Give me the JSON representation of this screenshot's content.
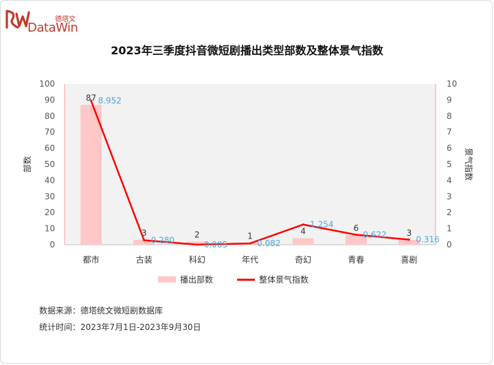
{
  "brand": {
    "cn": "德塔文",
    "en": "DataWin"
  },
  "chart_data": {
    "type": "bar+line",
    "title": "2023年三季度抖音微短剧播出类型部数及整体景气指数",
    "categories": [
      "都市",
      "古装",
      "科幻",
      "年代",
      "奇幻",
      "青春",
      "喜剧"
    ],
    "series": [
      {
        "name": "播出部数",
        "type": "bar",
        "axis": "left",
        "values": [
          87,
          3,
          2,
          1,
          4,
          6,
          3
        ],
        "labels": [
          "87",
          "3",
          "2",
          "1",
          "4",
          "6",
          "3"
        ],
        "color": "#ffc7c7"
      },
      {
        "name": "整体景气指数",
        "type": "line",
        "axis": "right",
        "values": [
          8.952,
          0.28,
          0.005,
          0.082,
          1.254,
          0.622,
          0.316
        ],
        "labels": [
          "8.952",
          "0.280",
          "0.005",
          "0.082",
          "1.254",
          "0.622",
          "0.316"
        ],
        "color": "#ff0000"
      }
    ],
    "ylabel_left": "部数",
    "ylabel_right": "景气指数",
    "ylim_left": [
      0,
      100
    ],
    "ylim_right": [
      0,
      10
    ],
    "yticks_left": [
      "0",
      "10",
      "20",
      "30",
      "40",
      "50",
      "60",
      "70",
      "80",
      "90",
      "100"
    ],
    "yticks_right": [
      "0",
      "1",
      "2",
      "3",
      "4",
      "5",
      "6",
      "7",
      "8",
      "9",
      "10"
    ],
    "grid": false,
    "legend_position": "bottom",
    "plot_background": "#f2f2f2",
    "line_label_color": "#4aa8d8"
  },
  "footer": {
    "source": "数据来源：德塔统文微短剧数据库",
    "period": "统计时间：2023年7月1日-2023年9月30日"
  }
}
